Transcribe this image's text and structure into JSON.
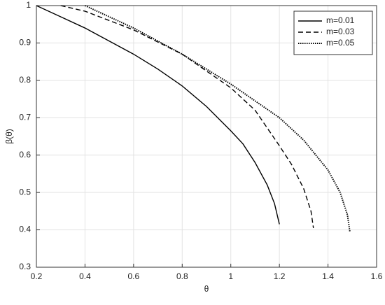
{
  "chart_data": {
    "type": "line",
    "xlabel": "θ",
    "ylabel": "β(θ)",
    "xlim": [
      0.2,
      1.6
    ],
    "xticks": [
      0.2,
      0.4,
      0.6,
      0.8,
      1,
      1.2,
      1.4,
      1.6
    ],
    "ylim": [
      0.3,
      1
    ],
    "yticks": [
      0.3,
      0.4,
      0.5,
      0.6,
      0.7,
      0.8,
      0.9,
      1
    ],
    "grid": true,
    "legend": "top-right",
    "series": [
      {
        "name": "m=0.01",
        "color": "#000000",
        "dash": "solid",
        "x": [
          0.2,
          0.3,
          0.4,
          0.5,
          0.6,
          0.7,
          0.8,
          0.9,
          1.0,
          1.05,
          1.1,
          1.15,
          1.18,
          1.2
        ],
        "values": [
          1,
          0.97,
          0.94,
          0.905,
          0.87,
          0.83,
          0.785,
          0.73,
          0.665,
          0.63,
          0.58,
          0.52,
          0.47,
          0.415
        ]
      },
      {
        "name": "m=0.03",
        "color": "#000000",
        "dash": "dashed",
        "x": [
          0.3,
          0.4,
          0.6,
          0.8,
          1.0,
          1.1,
          1.2,
          1.25,
          1.3,
          1.33,
          1.34
        ],
        "values": [
          1,
          0.985,
          0.935,
          0.87,
          0.78,
          0.72,
          0.625,
          0.575,
          0.51,
          0.45,
          0.405
        ]
      },
      {
        "name": "m=0.05",
        "color": "#000000",
        "dash": "dotted",
        "x": [
          0.4,
          0.6,
          0.8,
          1.0,
          1.2,
          1.3,
          1.4,
          1.45,
          1.48,
          1.49
        ],
        "values": [
          1,
          0.94,
          0.87,
          0.79,
          0.7,
          0.64,
          0.56,
          0.5,
          0.44,
          0.395
        ]
      }
    ]
  }
}
